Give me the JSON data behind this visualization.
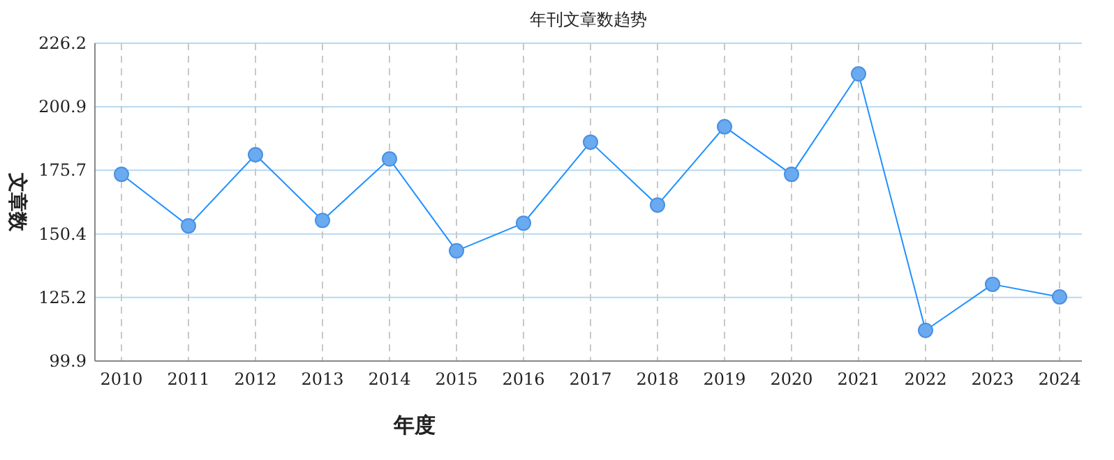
{
  "chart_data": {
    "type": "line",
    "title": "年刊文章数趋势",
    "xlabel": "年度",
    "ylabel": "文章数",
    "categories": [
      "2010",
      "2011",
      "2012",
      "2013",
      "2014",
      "2015",
      "2016",
      "2017",
      "2018",
      "2019",
      "2020",
      "2021",
      "2022",
      "2023",
      "2024"
    ],
    "series": [
      {
        "color": "#1e90ff",
        "values": [
          174.1,
          153.6,
          181.9,
          155.8,
          180.2,
          143.7,
          154.7,
          186.9,
          161.9,
          193.0,
          174.1,
          214.0,
          112.1,
          130.4,
          125.4
        ]
      }
    ],
    "ylim": [
      99.9,
      226.2
    ],
    "yticks": [
      99.9,
      125.2,
      150.4,
      175.7,
      200.9,
      226.2
    ],
    "grid": true,
    "marker": "circle",
    "line_style": "solid"
  }
}
